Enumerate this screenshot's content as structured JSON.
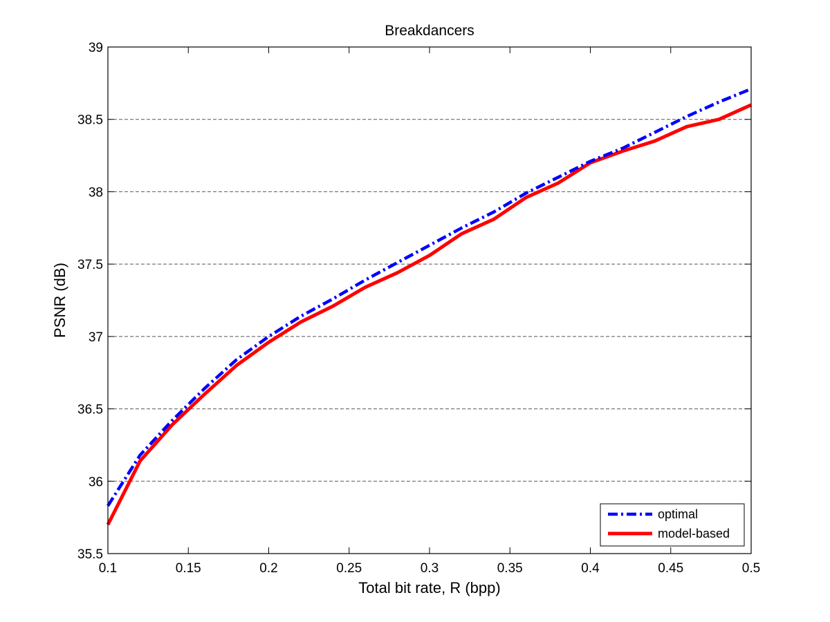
{
  "chart_data": {
    "type": "line",
    "title": "Breakdancers",
    "xlabel": "Total bit rate, R (bpp)",
    "ylabel": "PSNR (dB)",
    "xlim": [
      0.1,
      0.5
    ],
    "ylim": [
      35.5,
      39
    ],
    "xticks": [
      0.1,
      0.15,
      0.2,
      0.25,
      0.3,
      0.35,
      0.4,
      0.45,
      0.5
    ],
    "xtick_labels": [
      "0.1",
      "0.15",
      "0.2",
      "0.25",
      "0.3",
      "0.35",
      "0.4",
      "0.45",
      "0.5"
    ],
    "yticks": [
      35.5,
      36,
      36.5,
      37,
      37.5,
      38,
      38.5,
      39
    ],
    "ytick_labels": [
      "35.5",
      "36",
      "36.5",
      "37",
      "37.5",
      "38",
      "38.5",
      "39"
    ],
    "grid": "horizontal dashed",
    "legend_position": "bottom-right",
    "x": [
      0.1,
      0.12,
      0.14,
      0.16,
      0.18,
      0.2,
      0.22,
      0.24,
      0.26,
      0.28,
      0.3,
      0.32,
      0.34,
      0.36,
      0.38,
      0.4,
      0.42,
      0.44,
      0.46,
      0.48,
      0.5
    ],
    "series": [
      {
        "name": "optimal",
        "color": "#0000ff",
        "style": "dash-dot",
        "values": [
          35.83,
          36.18,
          36.42,
          36.64,
          36.84,
          37.0,
          37.14,
          37.26,
          37.39,
          37.51,
          37.63,
          37.75,
          37.86,
          37.99,
          38.1,
          38.21,
          38.3,
          38.41,
          38.52,
          38.62,
          38.71
        ]
      },
      {
        "name": "model-based",
        "color": "#ff0000",
        "style": "solid",
        "values": [
          35.7,
          36.14,
          36.39,
          36.6,
          36.8,
          36.96,
          37.1,
          37.21,
          37.34,
          37.44,
          37.56,
          37.71,
          37.81,
          37.96,
          38.06,
          38.2,
          38.28,
          38.35,
          38.45,
          38.5,
          38.6
        ]
      }
    ]
  }
}
